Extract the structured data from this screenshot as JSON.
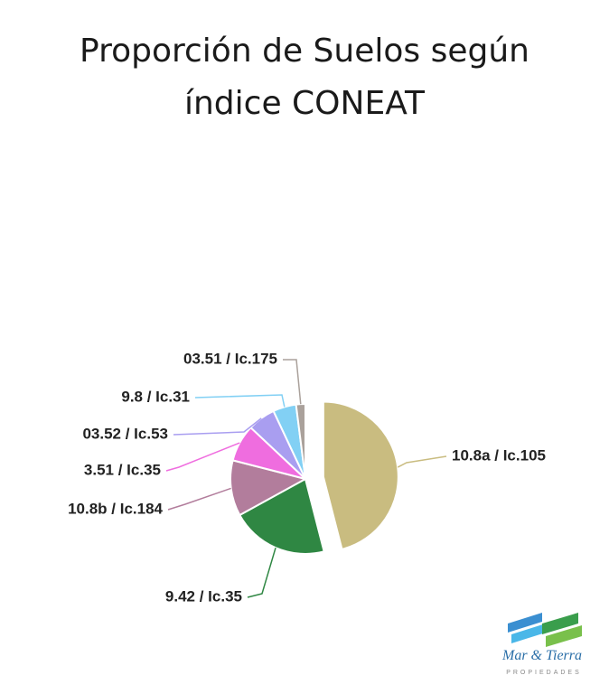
{
  "chart_data": {
    "type": "pie",
    "title": "Proporción de Suelos según índice CONEAT",
    "categories": [
      "10.8a / Ic.105",
      "9.42 / Ic.35",
      "10.8b / Ic.184",
      "3.51 / Ic.35",
      "03.52 / Ic.53",
      "9.8 / Ic.31",
      "03.51 / Ic.175"
    ],
    "values": [
      46,
      21,
      12,
      8,
      6,
      5,
      2
    ],
    "colors": [
      "#c9bc80",
      "#2f8743",
      "#b27d9c",
      "#ef6ddf",
      "#a99ef0",
      "#82d0f4",
      "#aaa19b"
    ],
    "explode": [
      0
    ]
  },
  "logo": {
    "name": "Mar & Tierra",
    "tagline": "PROPIEDADES"
  }
}
